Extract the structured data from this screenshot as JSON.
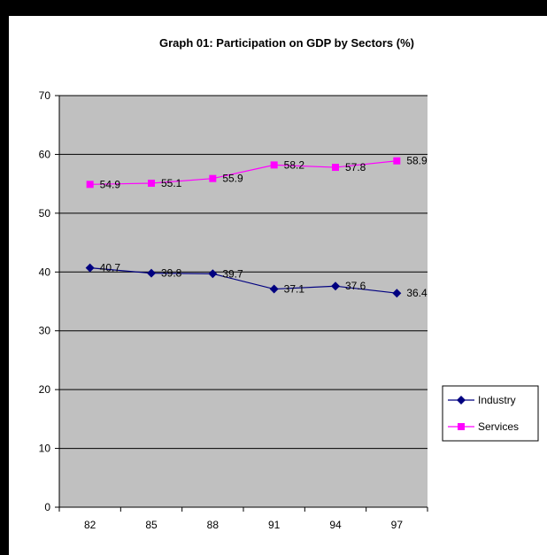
{
  "chart_data": {
    "type": "line",
    "title": "Graph 01: Participation on GDP by Sectors (%)",
    "xlabel": "",
    "ylabel": "",
    "categories": [
      "82",
      "85",
      "88",
      "91",
      "94",
      "97"
    ],
    "ylim": [
      0,
      70
    ],
    "yticks": [
      "0",
      "10",
      "20",
      "30",
      "40",
      "50",
      "60",
      "70"
    ],
    "grid": true,
    "legend_position": "right",
    "series": [
      {
        "name": "Industry",
        "values": [
          40.7,
          39.8,
          39.7,
          37.1,
          37.6,
          36.4
        ],
        "labels": [
          "40.7",
          "39.8",
          "39.7",
          "37.1",
          "37.6",
          "36.4"
        ],
        "color": "#000080",
        "marker": "diamond"
      },
      {
        "name": "Services",
        "values": [
          54.9,
          55.1,
          55.9,
          58.2,
          57.8,
          58.9
        ],
        "labels": [
          "54.9",
          "55.1",
          "55.9",
          "58.2",
          "57.8",
          "58.9"
        ],
        "color": "#FF00FF",
        "marker": "square"
      }
    ],
    "plot_background": "#C0C0C0"
  }
}
